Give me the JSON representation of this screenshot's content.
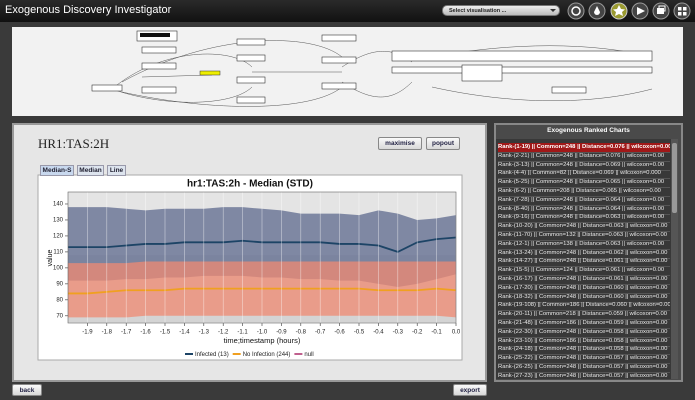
{
  "header": {
    "title": "Exogenous Discovery Investigator",
    "select": "Select visualisation ..."
  },
  "panel": {
    "title": "HR1:TAS:2H",
    "buttons": [
      "maximise",
      "popout"
    ],
    "tabs": [
      "Median-S",
      "Median",
      "Line"
    ],
    "active_tab": 0
  },
  "ranked": {
    "title": "Exogenous Ranked Charts",
    "selected": 0,
    "items": [
      "Rank-(1-19) || Common=248 || Distance=0.076 || wilcoxon=0.00",
      "Rank-(2-21) || Common=248 || Distance=0.076 || wilcoxon=0.00",
      "Rank-(3-13) || Common=248 || Distance=0.069 || wilcoxon=0.00",
      "Rank-(4-4) || Common=82 || Distance=0.069 || wilcoxon=0.000",
      "Rank-(5-25) || Common=248 || Distance=0.065 || wilcoxon=0.00",
      "Rank-(6-2) || Common=208 || Distance=0.065 || wilcoxon=0.00",
      "Rank-(7-28) || Common=248 || Distance=0.064 || wilcoxon=0.00",
      "Rank-(8-40) || Common=248 || Distance=0.064 || wilcoxon=0.00",
      "Rank-(9-16) || Common=248 || Distance=0.063 || wilcoxon=0.00",
      "Rank-(10-20) || Common=248 || Distance=0.063 || wilcoxon=0.00",
      "Rank-(11-70) || Common=132 || Distance=0.063 || wilcoxon=0.00",
      "Rank-(12-1) || Common=138 || Distance=0.063 || wilcoxon=0.00",
      "Rank-(13-24) || Common=248 || Distance=0.062 || wilcoxon=0.00",
      "Rank-(14-27) || Common=248 || Distance=0.061 || wilcoxon=0.00",
      "Rank-(15-5) || Common=124 || Distance=0.061 || wilcoxon=0.00",
      "Rank-(16-17) || Common=248 || Distance=0.061 || wilcoxon=0.00",
      "Rank-(17-20) || Common=248 || Distance=0.060 || wilcoxon=0.00",
      "Rank-(18-32) || Common=248 || Distance=0.060 || wilcoxon=0.00",
      "Rank-(19-108) || Common=186 || Distance=0.060 || wilcoxon=0.00",
      "Rank-(20-11) || Common=218 || Distance=0.059 || wilcoxon=0.00",
      "Rank-(21-48) || Common=186 || Distance=0.059 || wilcoxon=0.00",
      "Rank-(22-30) || Common=248 || Distance=0.058 || wilcoxon=0.00",
      "Rank-(23-10) || Common=186 || Distance=0.058 || wilcoxon=0.00",
      "Rank-(24-18) || Common=248 || Distance=0.058 || wilcoxon=0.00",
      "Rank-(25-22) || Common=248 || Distance=0.057 || wilcoxon=0.00",
      "Rank-(26-25) || Common=248 || Distance=0.057 || wilcoxon=0.00",
      "Rank-(27-23) || Common=248 || Distance=0.057 || wilcoxon=0.00"
    ]
  },
  "footer": {
    "back": "back",
    "export": "export"
  },
  "chart_data": {
    "type": "line",
    "title": "hr1:TAS:2h - Median (STD)",
    "x_label": "time;timestamp (hours)",
    "y_label": "value",
    "x": [
      -2.0,
      -1.9,
      -1.8,
      -1.7,
      -1.6,
      -1.5,
      -1.4,
      -1.3,
      -1.2,
      -1.1,
      -1.0,
      -0.9,
      -0.8,
      -0.7,
      -0.6,
      -0.5,
      -0.4,
      -0.3,
      -0.2,
      -0.1,
      0.0
    ],
    "xlim": [
      -2.0,
      0.0
    ],
    "xticks": [
      -1.9,
      -1.8,
      -1.7,
      -1.6,
      -1.5,
      -1.4,
      -1.3,
      -1.2,
      -1.1,
      {
        "value": -1,
        "label": "-1.0"
      },
      -0.9,
      -0.8,
      -0.7,
      -0.6,
      -0.5,
      -0.4,
      -0.3,
      -0.2,
      -0.1,
      {
        "value": 0,
        "label": "0.0"
      }
    ],
    "ylim": [
      65.5,
      147.5
    ],
    "yticks": [
      70,
      80,
      90,
      100,
      110,
      120,
      130,
      140
    ],
    "grid": true,
    "series": [
      {
        "name": "Infected (13)",
        "color": "#1d4466",
        "band_color": "#5d6a8e",
        "values": [
          113,
          113,
          113,
          114,
          115,
          115,
          116,
          116,
          116,
          117,
          116,
          116,
          116,
          116,
          115,
          115,
          114,
          110,
          116,
          118,
          119
        ],
        "lower": [
          92,
          92,
          92,
          93,
          93,
          94,
          94,
          95,
          95,
          95,
          94,
          94,
          93,
          93,
          92,
          92,
          90,
          88,
          90,
          93,
          96
        ],
        "upper": [
          138,
          138,
          138,
          137,
          136,
          137,
          137,
          137,
          138,
          138,
          137,
          136,
          134,
          134,
          134,
          133,
          136,
          134,
          130,
          131,
          133
        ]
      },
      {
        "name": "No Infection (244)",
        "color": "#f0a020",
        "band_color": "#f08a72",
        "values": [
          84,
          84,
          85,
          86,
          86,
          86,
          87,
          87,
          87,
          87,
          87,
          87,
          87,
          87,
          87,
          87,
          86,
          86,
          86,
          87,
          86
        ],
        "lower": [
          69,
          69,
          69,
          69,
          70,
          70,
          70,
          70,
          70,
          70,
          70,
          70,
          70,
          70,
          70,
          70,
          70,
          70,
          70,
          70,
          69
        ],
        "upper": [
          103,
          103,
          103,
          103,
          104,
          104,
          104,
          104,
          104,
          104,
          104,
          104,
          104,
          104,
          104,
          104,
          104,
          104,
          104,
          104,
          104
        ]
      },
      {
        "name": "null",
        "color": "#c0608e",
        "band_color": "#d4d4d4",
        "values": [
          90,
          90,
          90,
          90,
          90,
          90,
          90,
          90,
          90,
          90,
          90,
          90,
          90,
          90,
          90,
          90,
          90,
          90,
          90,
          90,
          90
        ],
        "lower": [
          66,
          66,
          66,
          66,
          66,
          66,
          66,
          66,
          66,
          66,
          66,
          66,
          66,
          66,
          66,
          66,
          66,
          66,
          66,
          66,
          66
        ],
        "upper": [
          108,
          108,
          108,
          108,
          108,
          108,
          108,
          108,
          108,
          108,
          108,
          108,
          108,
          108,
          108,
          108,
          108,
          108,
          108,
          108,
          108
        ]
      }
    ]
  }
}
